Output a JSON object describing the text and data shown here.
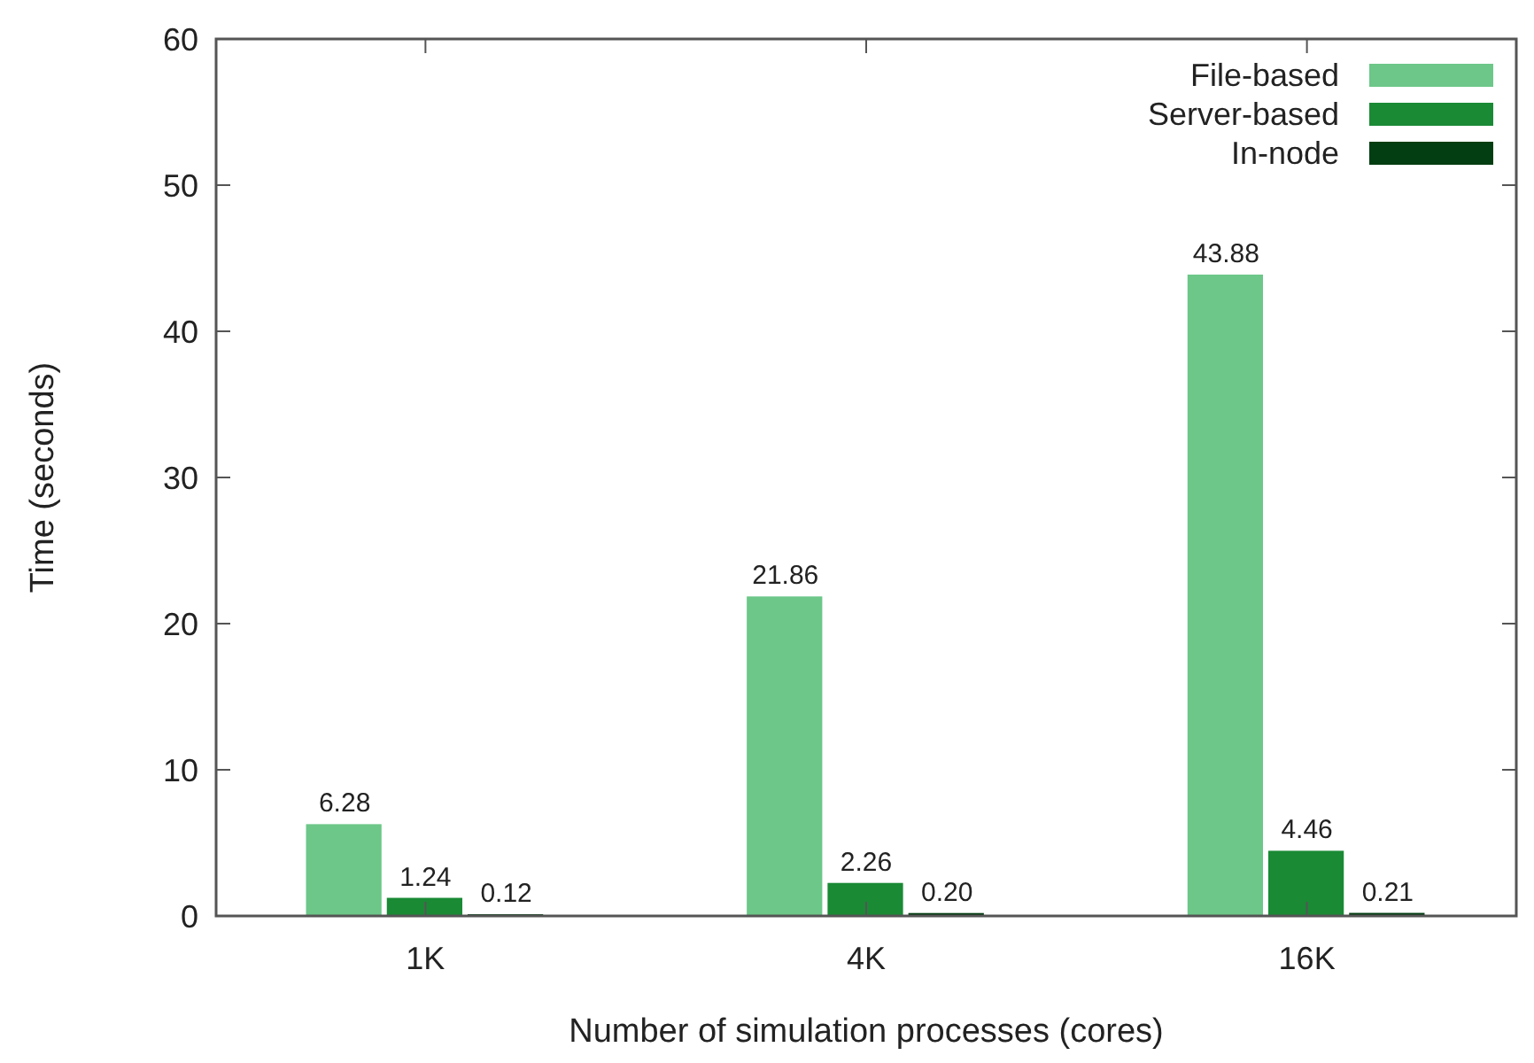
{
  "chart_data": {
    "type": "bar",
    "xlabel": "Number of simulation processes (cores)",
    "ylabel": "Time (seconds)",
    "categories": [
      "1K",
      "4K",
      "16K"
    ],
    "series": [
      {
        "name": "File-based",
        "color": "#6cc788",
        "values": [
          6.28,
          21.86,
          43.88
        ],
        "value_labels": [
          "6.28",
          "21.86",
          "43.88"
        ]
      },
      {
        "name": "Server-based",
        "color": "#1a8a35",
        "values": [
          1.24,
          2.26,
          4.46
        ],
        "value_labels": [
          "1.24",
          "2.26",
          "4.46"
        ]
      },
      {
        "name": "In-node",
        "color": "#033d12",
        "values": [
          0.12,
          0.2,
          0.21
        ],
        "value_labels": [
          "0.12",
          "0.20",
          "0.21"
        ]
      }
    ],
    "ylim": [
      0,
      60
    ],
    "yticks": [
      0,
      10,
      20,
      30,
      40,
      50,
      60
    ],
    "legend": "top right"
  }
}
